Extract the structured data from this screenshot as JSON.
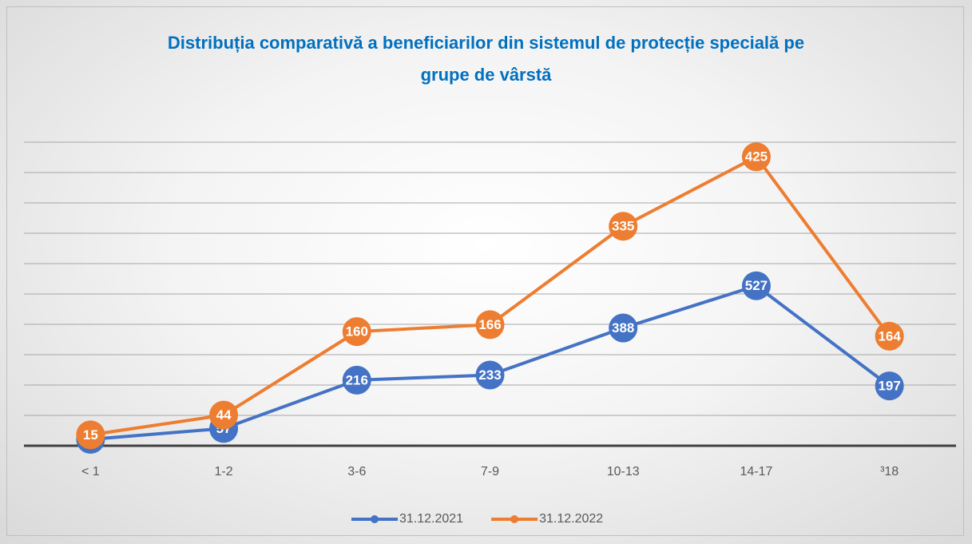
{
  "chart_data": {
    "type": "line",
    "stacked": true,
    "title": "Distribuția comparativă a beneficiarilor din sistemul de protecție specială pe grupe de vârstă",
    "categories": [
      "< 1",
      "1-2",
      "3-6",
      "7-9",
      "10-13",
      "14-17",
      "³18"
    ],
    "series": [
      {
        "name": "31.12.2021",
        "color": "#4472c4",
        "values": [
          21,
          57,
          216,
          233,
          388,
          527,
          197
        ]
      },
      {
        "name": "31.12.2022",
        "color": "#ed7d31",
        "values": [
          15,
          44,
          160,
          166,
          335,
          425,
          164
        ]
      }
    ],
    "ylim": [
      0,
      1000
    ],
    "yticks": [
      0,
      100,
      200,
      300,
      400,
      500,
      600,
      700,
      800,
      900,
      1000
    ],
    "grid": true,
    "legend": "bottom"
  }
}
